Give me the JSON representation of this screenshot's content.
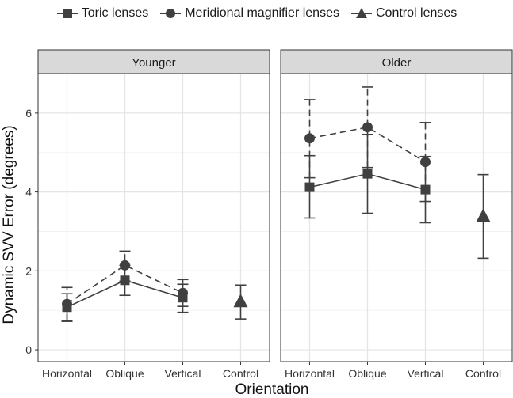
{
  "chart_data": {
    "type": "line",
    "ylabel": "Dynamic SVV Error (degrees)",
    "xlabel": "Orientation",
    "categories": [
      "Horizontal",
      "Oblique",
      "Vertical",
      "Control"
    ],
    "ylim": [
      -0.3,
      7.0
    ],
    "yticks": [
      0,
      2,
      4,
      6
    ],
    "legend": {
      "placement": "top",
      "entries": [
        {
          "name": "Toric lenses",
          "marker": "square"
        },
        {
          "name": "Meridional magnifier lenses",
          "marker": "circle"
        },
        {
          "name": "Control lenses",
          "marker": "triangle"
        }
      ]
    },
    "panels": [
      {
        "title": "Younger",
        "series": [
          {
            "name": "Toric lenses",
            "line": "solid",
            "marker": "square",
            "points": [
              {
                "x": "Horizontal",
                "y": 1.08,
                "lo": 0.72,
                "hi": 1.42
              },
              {
                "x": "Oblique",
                "y": 1.76,
                "lo": 1.38,
                "hi": 2.14
              },
              {
                "x": "Vertical",
                "y": 1.32,
                "lo": 0.95,
                "hi": 1.66
              }
            ]
          },
          {
            "name": "Meridional magnifier lenses",
            "line": "dashed",
            "marker": "circle",
            "points": [
              {
                "x": "Horizontal",
                "y": 1.16,
                "lo": 0.74,
                "hi": 1.58
              },
              {
                "x": "Oblique",
                "y": 2.14,
                "lo": 1.74,
                "hi": 2.5
              },
              {
                "x": "Vertical",
                "y": 1.44,
                "lo": 1.1,
                "hi": 1.78
              }
            ]
          },
          {
            "name": "Control lenses",
            "line": "none",
            "marker": "triangle",
            "points": [
              {
                "x": "Control",
                "y": 1.22,
                "lo": 0.78,
                "hi": 1.64
              }
            ]
          }
        ]
      },
      {
        "title": "Older",
        "series": [
          {
            "name": "Toric lenses",
            "line": "solid",
            "marker": "square",
            "points": [
              {
                "x": "Horizontal",
                "y": 4.12,
                "lo": 3.34,
                "hi": 4.92
              },
              {
                "x": "Oblique",
                "y": 4.46,
                "lo": 3.46,
                "hi": 5.46
              },
              {
                "x": "Vertical",
                "y": 4.06,
                "lo": 3.22,
                "hi": 4.9
              }
            ]
          },
          {
            "name": "Meridional magnifier lenses",
            "line": "dashed",
            "marker": "circle",
            "points": [
              {
                "x": "Horizontal",
                "y": 5.36,
                "lo": 4.36,
                "hi": 6.34
              },
              {
                "x": "Oblique",
                "y": 5.64,
                "lo": 4.62,
                "hi": 6.66
              },
              {
                "x": "Vertical",
                "y": 4.76,
                "lo": 3.76,
                "hi": 5.76
              }
            ]
          },
          {
            "name": "Control lenses",
            "line": "none",
            "marker": "triangle",
            "points": [
              {
                "x": "Control",
                "y": 3.38,
                "lo": 2.32,
                "hi": 4.44
              }
            ]
          }
        ]
      }
    ]
  }
}
